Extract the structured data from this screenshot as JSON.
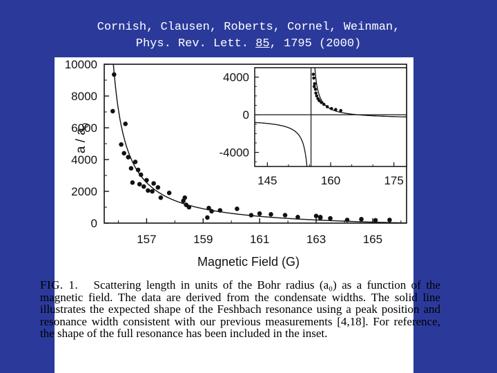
{
  "reference": {
    "authors": "Cornish, Clausen, Roberts, Cornel, Weinman,",
    "journal_prefix": "Phys. Rev. Lett.",
    "volume": "85",
    "pages_year": ", 1795 (2000)"
  },
  "caption": {
    "fig_label": "FIG. 1.",
    "text": "Scattering length in units of the Bohr radius (a₀) as a function of the magnetic field. The data are derived from the condensate widths. The solid line illustrates the expected shape of the Feshbach resonance using a peak position and resonance width consistent with our previous measurements [4,18]. For reference, the shape of the full resonance has been included in the inset."
  },
  "colors": {
    "background": "#2b3a9a",
    "panel": "#ffffff",
    "ink": "#111111",
    "text": "#ffffff"
  },
  "chart_data": [
    {
      "type": "scatter",
      "xlabel": "Magnetic Field (G)",
      "ylabel": "a / a",
      "ylabel_sub": "0",
      "xlim": [
        155.5,
        166.2
      ],
      "ylim": [
        0,
        10000
      ],
      "xticks": [
        157,
        159,
        161,
        163,
        165
      ],
      "xtick_labels": [
        "157",
        "159",
        "161",
        "163",
        "165"
      ],
      "yticks": [
        0,
        2000,
        4000,
        6000,
        8000,
        10000
      ],
      "ytick_labels": [
        "0",
        "2000",
        "4000",
        "6000",
        "8000",
        "10000"
      ],
      "fit_curve": {
        "B0": 155.35,
        "delta": 11,
        "abg": -450
      },
      "points": [
        [
          155.85,
          9350
        ],
        [
          155.8,
          7050
        ],
        [
          156.25,
          6250
        ],
        [
          156.1,
          4950
        ],
        [
          156.2,
          4400
        ],
        [
          156.35,
          4150
        ],
        [
          156.6,
          3850
        ],
        [
          156.45,
          3450
        ],
        [
          156.5,
          2550
        ],
        [
          156.7,
          3350
        ],
        [
          156.8,
          3050
        ],
        [
          156.75,
          2450
        ],
        [
          156.9,
          2300
        ],
        [
          157.05,
          2050
        ],
        [
          157.2,
          2000
        ],
        [
          157.0,
          2700
        ],
        [
          157.25,
          2500
        ],
        [
          157.4,
          2250
        ],
        [
          157.5,
          1600
        ],
        [
          157.8,
          1900
        ],
        [
          158.35,
          1600
        ],
        [
          158.3,
          1400
        ],
        [
          158.4,
          1150
        ],
        [
          158.5,
          1000
        ],
        [
          159.2,
          950
        ],
        [
          159.3,
          750
        ],
        [
          159.15,
          350
        ],
        [
          159.6,
          800
        ],
        [
          160.2,
          900
        ],
        [
          160.7,
          500
        ],
        [
          161.0,
          600
        ],
        [
          161.4,
          550
        ],
        [
          161.9,
          500
        ],
        [
          162.35,
          380
        ],
        [
          163.0,
          450
        ],
        [
          163.15,
          380
        ],
        [
          163.5,
          300
        ],
        [
          163.15,
          330
        ],
        [
          164.1,
          200
        ],
        [
          164.6,
          250
        ],
        [
          165.1,
          180
        ],
        [
          165.6,
          200
        ]
      ]
    },
    {
      "type": "scatter",
      "inset": true,
      "xlim": [
        142,
        178
      ],
      "ylim": [
        -5500,
        5000
      ],
      "xticks": [
        145,
        160,
        175
      ],
      "xtick_labels": [
        "145",
        "160",
        "175"
      ],
      "yticks": [
        -4000,
        0,
        4000
      ],
      "ytick_labels": [
        "-4000",
        "0",
        "4000"
      ],
      "fit_curve": {
        "B0": 155.35,
        "delta": 11,
        "abg": -450
      },
      "points": [
        [
          155.9,
          4300
        ],
        [
          156.0,
          3900
        ],
        [
          156.1,
          3000
        ],
        [
          156.2,
          3300
        ],
        [
          156.4,
          2700
        ],
        [
          156.5,
          2300
        ],
        [
          156.7,
          2000
        ],
        [
          157.0,
          1700
        ],
        [
          157.3,
          1500
        ],
        [
          157.8,
          1300
        ],
        [
          158.4,
          1100
        ],
        [
          159.2,
          850
        ],
        [
          160.2,
          650
        ],
        [
          161.2,
          550
        ],
        [
          162.4,
          450
        ]
      ]
    }
  ]
}
